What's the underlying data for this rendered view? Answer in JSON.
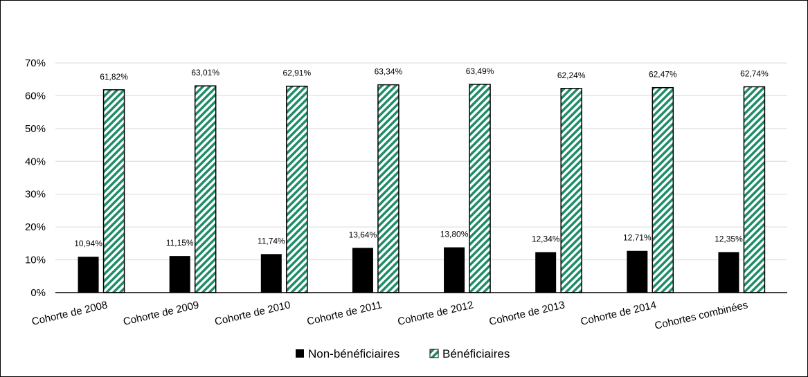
{
  "chart_data": {
    "type": "bar",
    "categories": [
      "Cohorte de 2008",
      "Cohorte de 2009",
      "Cohorte de 2010",
      "Cohorte de 2011",
      "Cohorte de 2012",
      "Cohorte de 2013",
      "Cohorte de 2014",
      "Cohortes combinées"
    ],
    "series": [
      {
        "name": "Non-bénéficiaires",
        "values": [
          10.94,
          11.15,
          11.74,
          13.64,
          13.8,
          12.34,
          12.71,
          12.35
        ],
        "labels": [
          "10,94%",
          "11,15%",
          "11,74%",
          "13,64%",
          "13,80%",
          "12,34%",
          "12,71%",
          "12,35%"
        ],
        "color": "#000000",
        "pattern": "solid"
      },
      {
        "name": "Bénéficiaires",
        "values": [
          61.82,
          63.01,
          62.91,
          63.34,
          63.49,
          62.24,
          62.47,
          62.74
        ],
        "labels": [
          "61,82%",
          "63,01%",
          "62,91%",
          "63,34%",
          "63,49%",
          "62,24%",
          "62,47%",
          "62,74%"
        ],
        "color": "#1e8c66",
        "pattern": "diagonal-stripes"
      }
    ],
    "ylim": [
      0,
      70
    ],
    "yticks": [
      0,
      10,
      20,
      30,
      40,
      50,
      60,
      70
    ],
    "ytick_labels": [
      "0%",
      "10%",
      "20%",
      "30%",
      "40%",
      "50%",
      "60%",
      "70%"
    ],
    "grid": true,
    "legend_position": "bottom",
    "title": "",
    "xlabel": "",
    "ylabel": ""
  }
}
